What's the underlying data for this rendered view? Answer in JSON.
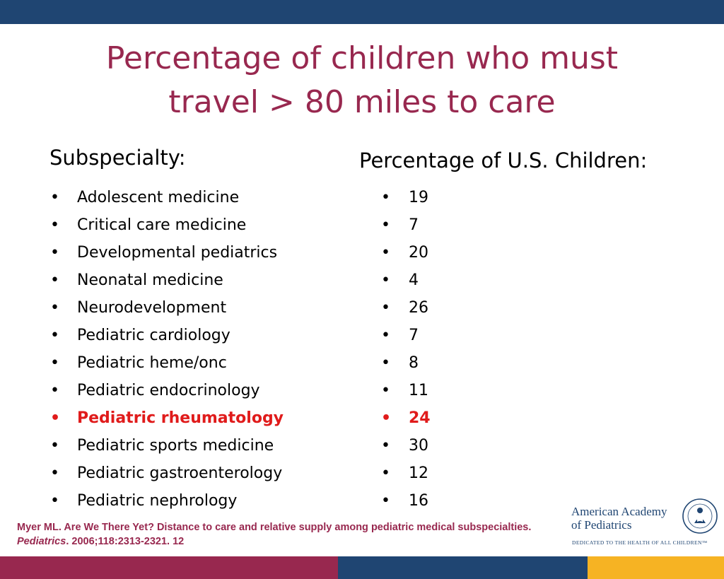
{
  "title": {
    "line1": "Percentage of children who must",
    "line2": "travel > 80 miles to care"
  },
  "columns": {
    "left_header": "Subspecialty:",
    "right_header": "Percentage of U.S. Children:"
  },
  "bullet": "•",
  "rows": [
    {
      "subspecialty": "Adolescent medicine",
      "percent": "19"
    },
    {
      "subspecialty": "Critical care medicine",
      "percent": "7"
    },
    {
      "subspecialty": "Developmental pediatrics",
      "percent": "20"
    },
    {
      "subspecialty": "Neonatal medicine",
      "percent": "4"
    },
    {
      "subspecialty": "Neurodevelopment",
      "percent": "26"
    },
    {
      "subspecialty": "Pediatric cardiology",
      "percent": "7"
    },
    {
      "subspecialty": "Pediatric heme/onc",
      "percent": "8"
    },
    {
      "subspecialty": "Pediatric endocrinology",
      "percent": "11"
    },
    {
      "subspecialty": "Pediatric rheumatology",
      "percent": "24",
      "highlight": true
    },
    {
      "subspecialty": "Pediatric sports medicine",
      "percent": "30"
    },
    {
      "subspecialty": "Pediatric gastroenterology",
      "percent": "12"
    },
    {
      "subspecialty": "Pediatric nephrology",
      "percent": "16"
    }
  ],
  "citation": {
    "text_before": "Myer ML. Are We There Yet? Distance to care and relative supply among pediatric medical subspecialties. ",
    "journal": "Pediatrics",
    "text_after": ". 2006;118:2313-2321. 12"
  },
  "logo": {
    "name_line1": "American Academy",
    "name_line2": "of Pediatrics",
    "tagline": "DEDICATED TO THE HEALTH OF ALL CHILDREN™",
    "seal_text": "AMERICAN ACADEMY OF PEDIATRICS"
  },
  "colors": {
    "top_bar": "#1f4572",
    "title": "#98284f",
    "highlight": "#e01b1b",
    "bottom_maroon": "#98284f",
    "bottom_navy": "#1f4572",
    "bottom_gold": "#f6b323"
  }
}
